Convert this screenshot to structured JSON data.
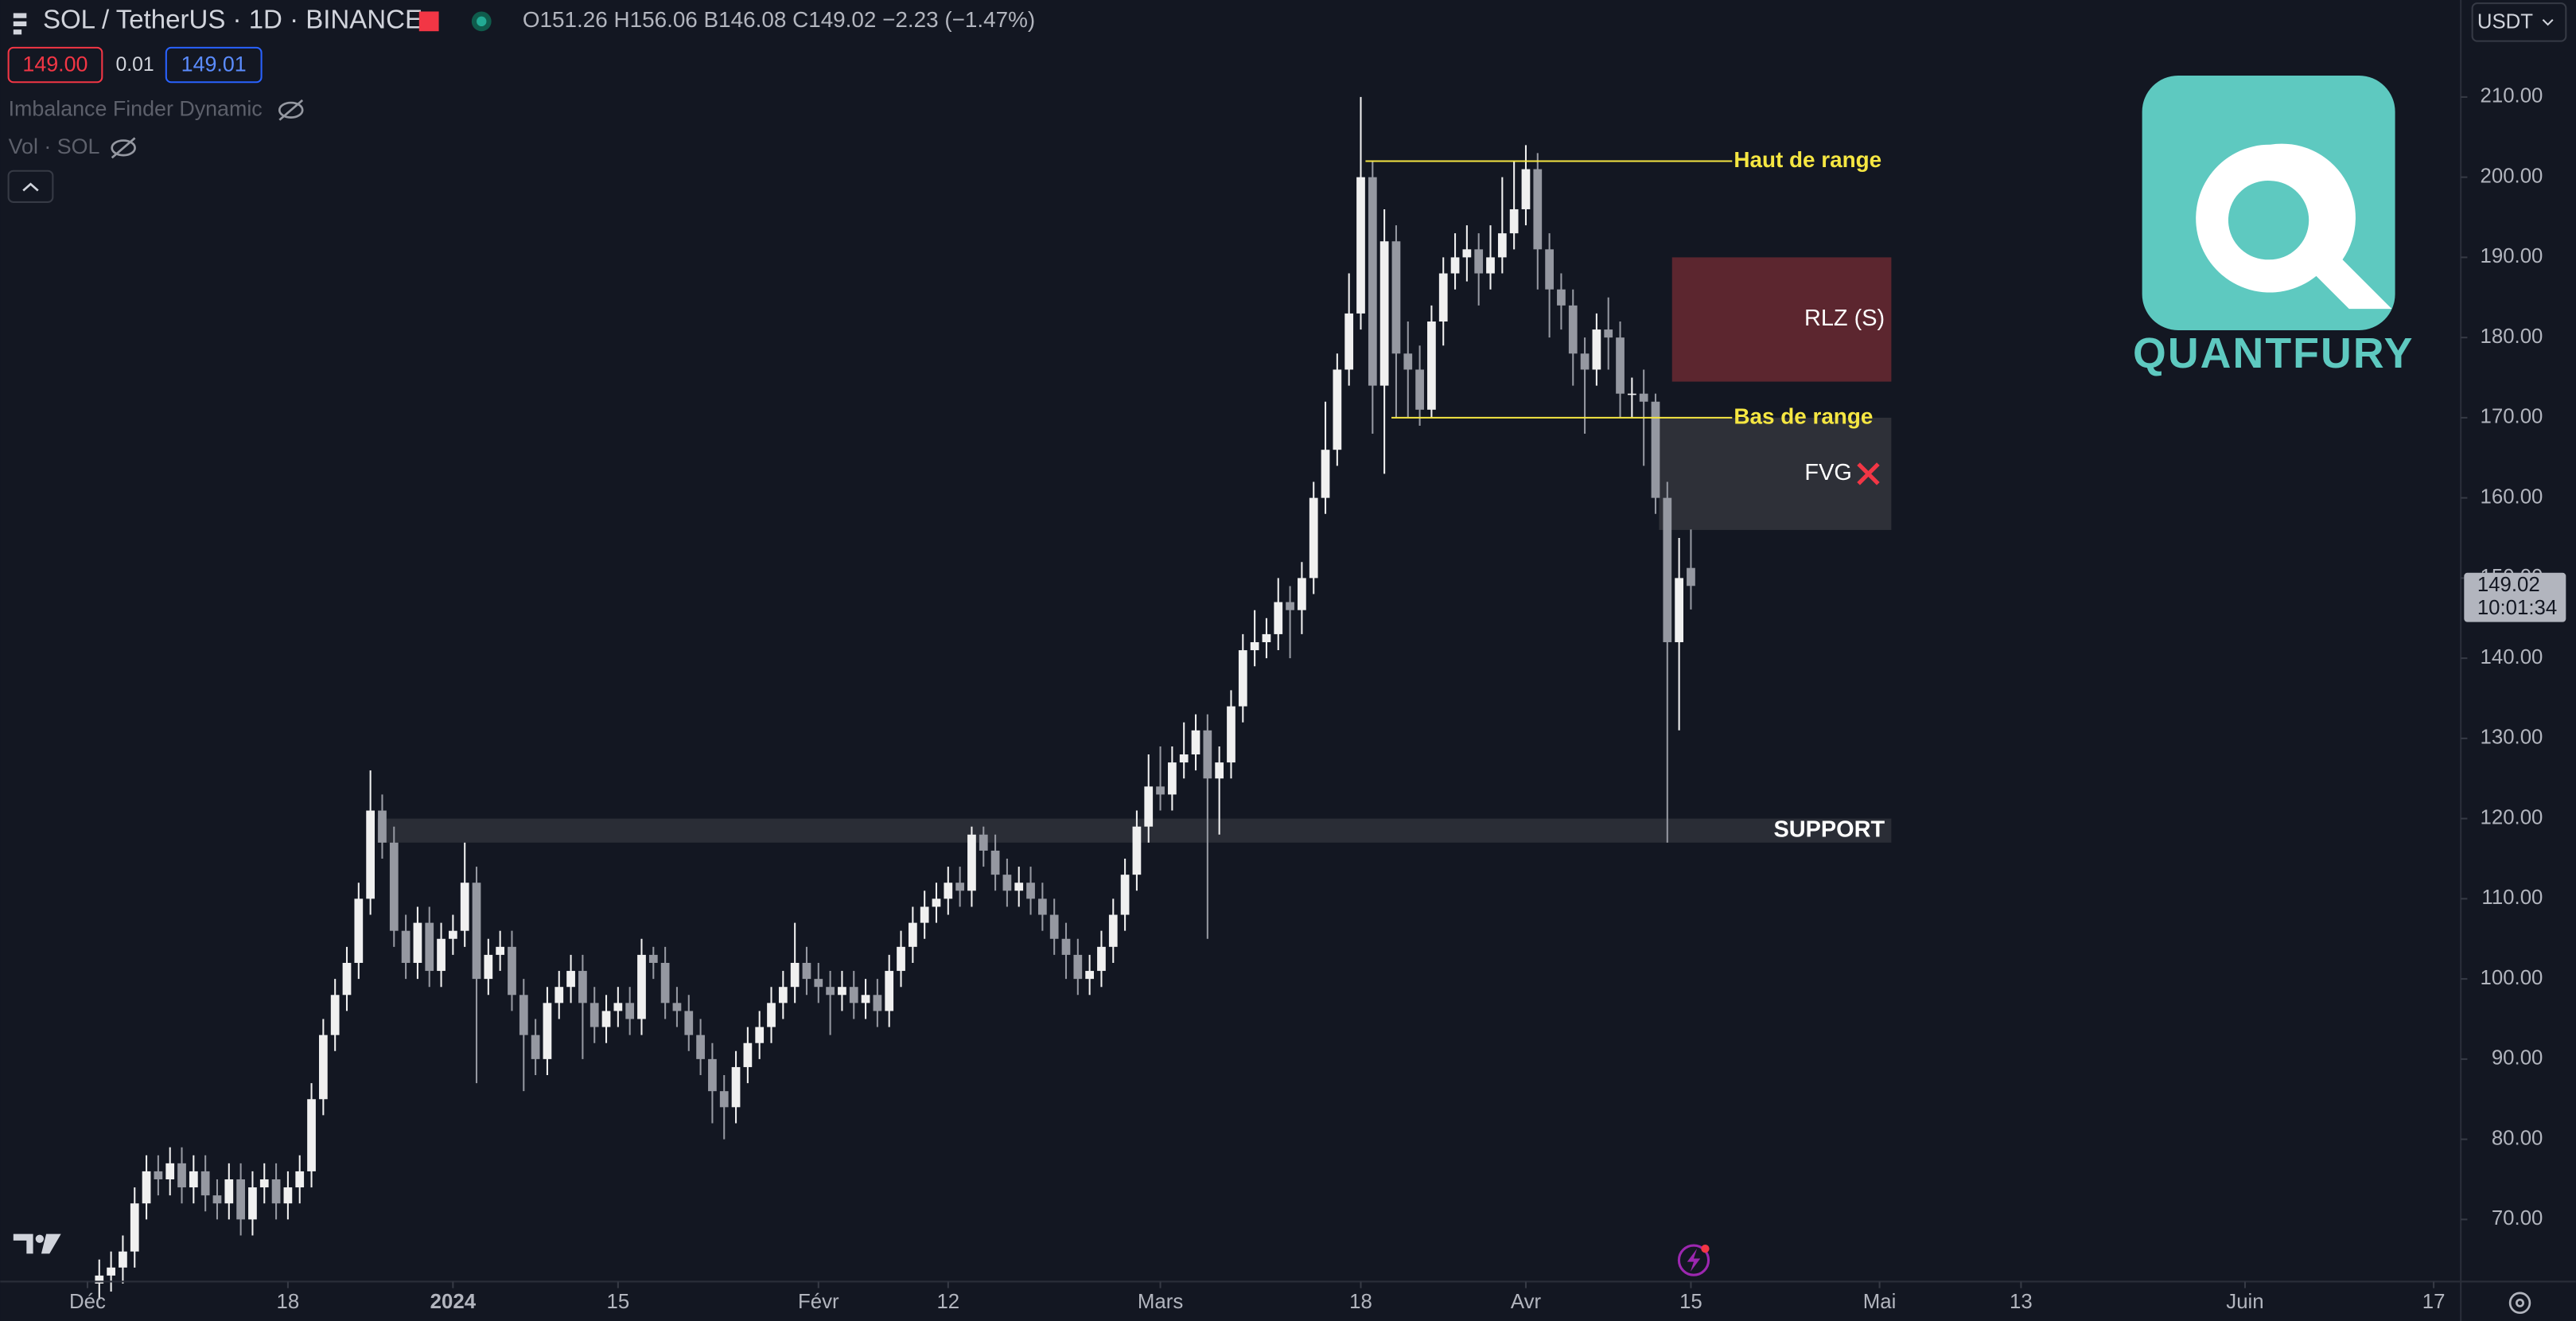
{
  "header": {
    "title": "SOL / TetherUS · 1D · BINANCE",
    "ohlc": "O151.26 H156.06 B146.08 C149.02 −2.23 (−1.47%)",
    "sell": "149.00",
    "spread": "0.01",
    "buy": "149.01",
    "currency": "USDT",
    "indicators": [
      "Imbalance Finder Dynamic",
      "Vol · SOL"
    ]
  },
  "logo": {
    "text": "QUANTFURY"
  },
  "chart_data": {
    "type": "candlestick",
    "up_color": "#f0f0f0",
    "down_color": "#9598a1",
    "open": [
      62,
      63,
      64,
      66,
      72,
      76,
      75,
      77,
      74,
      76,
      73,
      72,
      75,
      70,
      74,
      75,
      72,
      74,
      76,
      85,
      93,
      98,
      102,
      110,
      121,
      117,
      106,
      102,
      107,
      101,
      105,
      106,
      112,
      100,
      103,
      104,
      98,
      93,
      90,
      97,
      99,
      101,
      97,
      94,
      96,
      97,
      95,
      103,
      102,
      97,
      96,
      93,
      90,
      86,
      84,
      89,
      92,
      94,
      97,
      99,
      102,
      100,
      99,
      98,
      99,
      97,
      98,
      96,
      101,
      104,
      107,
      109,
      110,
      112,
      111,
      118,
      116,
      113,
      111,
      112,
      110,
      108,
      105,
      103,
      100,
      101,
      104,
      108,
      113,
      119,
      124,
      123,
      127,
      128,
      131,
      125,
      127,
      134,
      141,
      142,
      143,
      147,
      146,
      150,
      160,
      166,
      176,
      183,
      200,
      174,
      192,
      178,
      176,
      171,
      182,
      188,
      190,
      191,
      188,
      190,
      193,
      196,
      201,
      191,
      186,
      184,
      178,
      176,
      181,
      180,
      173,
      173,
      172,
      160,
      142,
      151.26
    ],
    "high": [
      65,
      66,
      68,
      74,
      78,
      78,
      79,
      79,
      78,
      78,
      75,
      77,
      77,
      76,
      77,
      77,
      76,
      78,
      87,
      95,
      100,
      104,
      112,
      126,
      123,
      119,
      108,
      109,
      109,
      107,
      108,
      117,
      114,
      105,
      106,
      106,
      100,
      95,
      99,
      101,
      103,
      103,
      99,
      98,
      99,
      99,
      105,
      104,
      104,
      99,
      98,
      95,
      92,
      88,
      91,
      94,
      96,
      99,
      101,
      107,
      104,
      102,
      101,
      101,
      101,
      100,
      100,
      103,
      106,
      109,
      111,
      112,
      114,
      114,
      119,
      119,
      118,
      115,
      114,
      114,
      112,
      110,
      107,
      105,
      103,
      106,
      110,
      115,
      121,
      128,
      129,
      129,
      132,
      133,
      133,
      129,
      136,
      143,
      146,
      145,
      150,
      149,
      152,
      162,
      172,
      178,
      188,
      210,
      202,
      196,
      194,
      182,
      179,
      184,
      190,
      193,
      194,
      193,
      194,
      200,
      202,
      204,
      203,
      193,
      188,
      186,
      180,
      183,
      185,
      182,
      175,
      176,
      173,
      162,
      155,
      156.06
    ],
    "low": [
      60,
      61,
      62,
      64,
      70,
      73,
      73,
      72,
      72,
      71,
      70,
      70,
      68,
      68,
      72,
      70,
      70,
      72,
      74,
      83,
      91,
      96,
      100,
      108,
      115,
      104,
      100,
      100,
      99,
      99,
      103,
      104,
      87,
      98,
      101,
      96,
      86,
      88,
      88,
      95,
      97,
      90,
      92,
      92,
      94,
      93,
      93,
      100,
      95,
      94,
      91,
      88,
      82,
      80,
      82,
      87,
      90,
      92,
      95,
      97,
      98,
      97,
      93,
      96,
      95,
      95,
      94,
      94,
      99,
      102,
      105,
      107,
      108,
      109,
      109,
      114,
      111,
      109,
      109,
      108,
      106,
      103,
      100,
      98,
      98,
      99,
      102,
      106,
      111,
      117,
      121,
      121,
      125,
      126,
      105,
      118,
      125,
      132,
      139,
      140,
      141,
      140,
      143,
      148,
      158,
      164,
      174,
      181,
      168,
      163,
      170,
      170,
      169,
      170,
      179,
      186,
      187,
      184,
      186,
      188,
      191,
      194,
      186,
      180,
      181,
      174,
      168,
      174,
      176,
      170,
      170,
      164,
      158,
      117,
      131,
      146.08
    ],
    "close": [
      63,
      64,
      66,
      72,
      76,
      75,
      77,
      74,
      76,
      73,
      72,
      75,
      70,
      74,
      75,
      72,
      74,
      76,
      85,
      93,
      98,
      102,
      110,
      121,
      117,
      106,
      102,
      107,
      101,
      105,
      106,
      112,
      100,
      103,
      104,
      98,
      93,
      90,
      97,
      99,
      101,
      97,
      94,
      96,
      97,
      95,
      103,
      102,
      97,
      96,
      93,
      90,
      86,
      84,
      89,
      92,
      94,
      97,
      99,
      102,
      100,
      99,
      98,
      99,
      97,
      98,
      96,
      101,
      104,
      107,
      109,
      110,
      112,
      111,
      118,
      116,
      113,
      111,
      112,
      110,
      108,
      105,
      103,
      100,
      101,
      104,
      108,
      113,
      119,
      124,
      123,
      127,
      128,
      131,
      125,
      127,
      134,
      141,
      142,
      143,
      147,
      146,
      150,
      160,
      166,
      176,
      183,
      200,
      174,
      192,
      178,
      176,
      171,
      182,
      188,
      190,
      191,
      188,
      190,
      193,
      196,
      201,
      191,
      186,
      184,
      178,
      176,
      181,
      180,
      173,
      173,
      172,
      160,
      142,
      150,
      149.02
    ],
    "first_x": 1,
    "xlim": [
      -7.4,
      201.3
    ],
    "xticks": [
      {
        "value": 0,
        "label": "Déc"
      },
      {
        "value": 17,
        "label": "18"
      },
      {
        "value": 31,
        "label": "2024"
      },
      {
        "value": 45,
        "label": "15"
      },
      {
        "value": 62,
        "label": "Févr"
      },
      {
        "value": 73,
        "label": "12"
      },
      {
        "value": 91,
        "label": "Mars"
      },
      {
        "value": 108,
        "label": "18"
      },
      {
        "value": 122,
        "label": "Avr"
      },
      {
        "value": 136,
        "label": "15"
      },
      {
        "value": 152,
        "label": "Mai"
      },
      {
        "value": 164,
        "label": "13"
      },
      {
        "value": 183,
        "label": "Juin"
      },
      {
        "value": 199,
        "label": "17"
      }
    ],
    "ylim": [
      62.25,
      222.1
    ],
    "yticks": [
      {
        "value": 70,
        "label": "70.00"
      },
      {
        "value": 80,
        "label": "80.00"
      },
      {
        "value": 90,
        "label": "90.00"
      },
      {
        "value": 100,
        "label": "100.00"
      },
      {
        "value": 110,
        "label": "110.00"
      },
      {
        "value": 120,
        "label": "120.00"
      },
      {
        "value": 130,
        "label": "130.00"
      },
      {
        "value": 140,
        "label": "140.00"
      },
      {
        "value": 150,
        "label": "150.00"
      },
      {
        "value": 160,
        "label": "160.00"
      },
      {
        "value": 170,
        "label": "170.00"
      },
      {
        "value": 180,
        "label": "180.00"
      },
      {
        "value": 190,
        "label": "190.00"
      },
      {
        "value": 200,
        "label": "200.00"
      },
      {
        "value": 210,
        "label": "210.00"
      }
    ],
    "last_price": 149.02,
    "countdown": "10:01:34",
    "lines": [
      {
        "label": "Haut de range",
        "y": 202,
        "x": [
          108.4,
          139.5
        ],
        "color": "#f5e642"
      },
      {
        "label": "Bas de range",
        "y": 170,
        "x": [
          110.6,
          139.5
        ],
        "color": "#f5e642"
      }
    ],
    "boxes": [
      {
        "label": "RLZ (S)",
        "y": [
          174.5,
          190
        ],
        "x": [
          134.4,
          153
        ],
        "color": "#5c262f"
      },
      {
        "label": "FVG",
        "y": [
          156,
          170
        ],
        "x": [
          133.3,
          153
        ],
        "color": "#2e3038"
      },
      {
        "label": "SUPPORT",
        "y": [
          117,
          120
        ],
        "x": [
          24.6,
          153
        ],
        "color": "#2a2d36"
      }
    ]
  }
}
